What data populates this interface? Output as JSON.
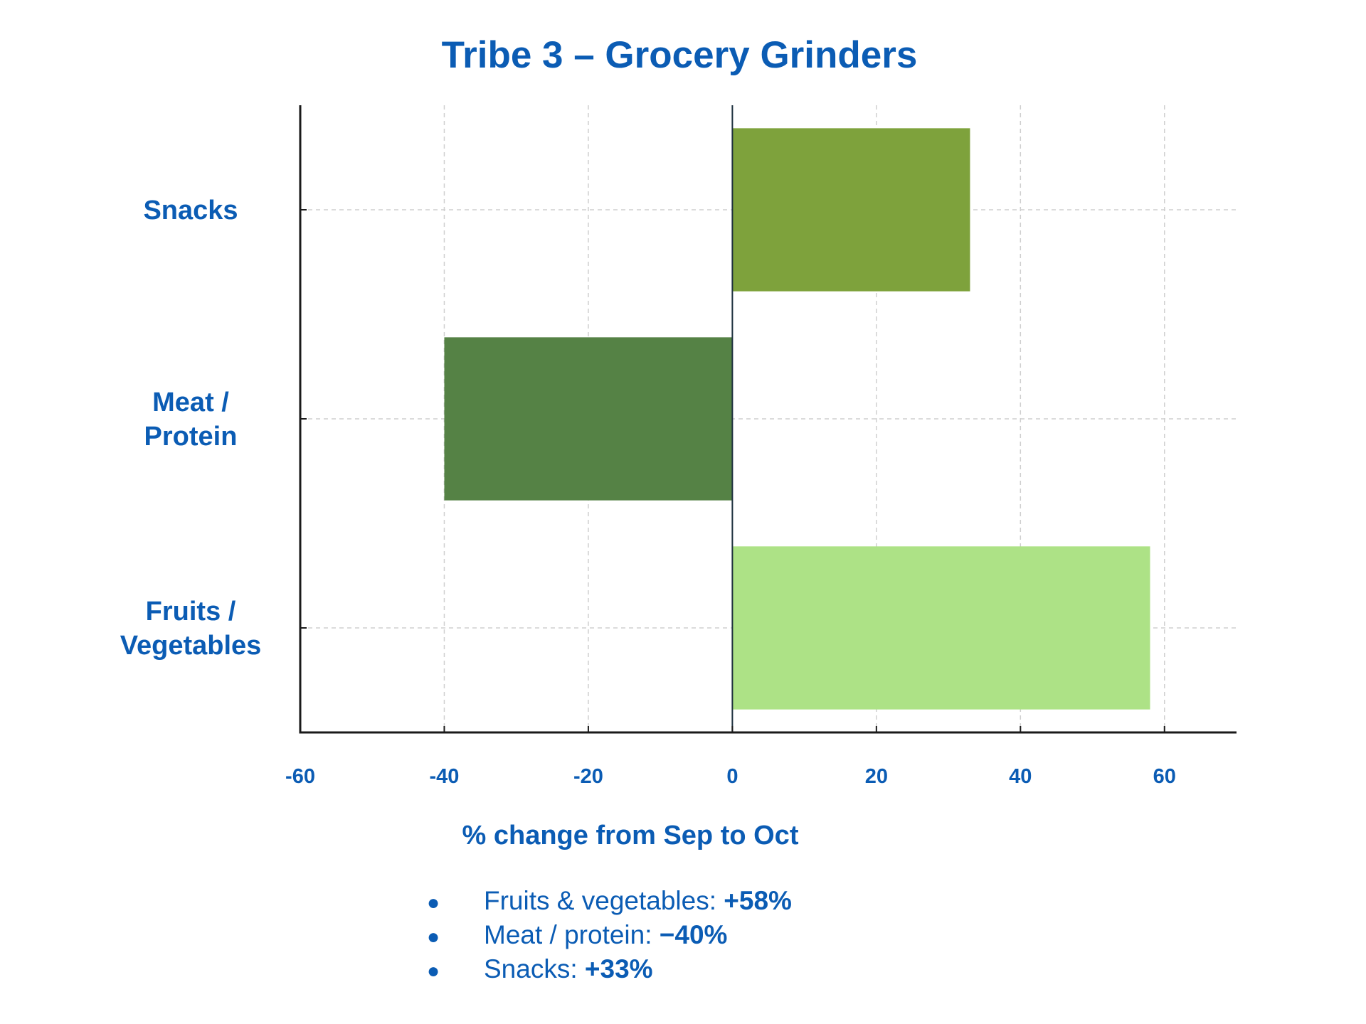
{
  "chart_data": {
    "type": "bar",
    "orientation": "horizontal",
    "title": "Tribe 3 – Grocery Grinders",
    "xlabel": "% change from Sep to Oct",
    "ylabel": "",
    "categories": [
      [
        "Snacks"
      ],
      [
        "Meat /",
        "Protein"
      ],
      [
        "Fruits /",
        "Vegetables"
      ]
    ],
    "values": [
      33,
      -40,
      58
    ],
    "colors": [
      "#7ea23c",
      "#558245",
      "#ade286"
    ],
    "xlim": [
      -60,
      70
    ],
    "xticks": [
      -60,
      -40,
      -20,
      0,
      20,
      40,
      60
    ],
    "xtick_labels": [
      "-60",
      "-40",
      "-20",
      "0",
      "20",
      "40",
      "60"
    ],
    "grid": true
  },
  "notes": [
    {
      "label": "Fruits & vegetables: ",
      "value": "+58%"
    },
    {
      "label": "Meat / protein: ",
      "value": "−40%"
    },
    {
      "label": "Snacks: ",
      "value": "+33%"
    }
  ],
  "bullet_glyph": "●"
}
